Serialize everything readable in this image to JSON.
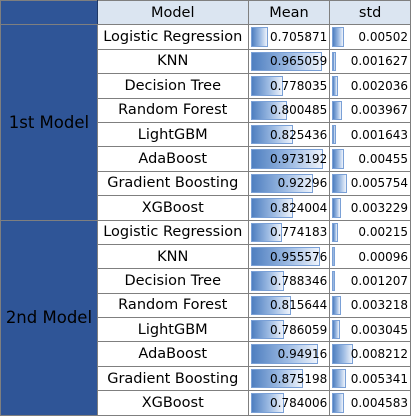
{
  "header": {
    "model": "Model",
    "mean": "Mean",
    "std": "std"
  },
  "groups": [
    {
      "label": "1st Model",
      "rows": [
        {
          "model": "Logistic Regression",
          "mean": "0.705871",
          "std": "0.00502",
          "mean_fill": 0.22,
          "std_fill": 0.16
        },
        {
          "model": "KNN",
          "mean": "0.965059",
          "std": "0.001627",
          "mean_fill": 0.93,
          "std_fill": 0.05
        },
        {
          "model": "Decision Tree",
          "mean": "0.778035",
          "std": "0.002036",
          "mean_fill": 0.42,
          "std_fill": 0.07
        },
        {
          "model": "Random Forest",
          "mean": "0.800485",
          "std": "0.003967",
          "mean_fill": 0.48,
          "std_fill": 0.13
        },
        {
          "model": "LightGBM",
          "mean": "0.825436",
          "std": "0.001643",
          "mean_fill": 0.55,
          "std_fill": 0.05
        },
        {
          "model": "AdaBoost",
          "mean": "0.973192",
          "std": "0.00455",
          "mean_fill": 0.95,
          "std_fill": 0.15
        },
        {
          "model": "Gradient Boosting",
          "mean": "0.92296",
          "std": "0.005754",
          "mean_fill": 0.81,
          "std_fill": 0.19
        },
        {
          "model": "XGBoost",
          "mean": "0.824004",
          "std": "0.003229",
          "mean_fill": 0.55,
          "std_fill": 0.11
        }
      ]
    },
    {
      "label": "2nd Model",
      "rows": [
        {
          "model": "Logistic Regression",
          "mean": "0.774183",
          "std": "0.00215",
          "mean_fill": 0.41,
          "std_fill": 0.07
        },
        {
          "model": "KNN",
          "mean": "0.955576",
          "std": "0.00096",
          "mean_fill": 0.9,
          "std_fill": 0.03
        },
        {
          "model": "Decision Tree",
          "mean": "0.788346",
          "std": "0.001207",
          "mean_fill": 0.44,
          "std_fill": 0.04
        },
        {
          "model": "Random Forest",
          "mean": "0.815644",
          "std": "0.003218",
          "mean_fill": 0.52,
          "std_fill": 0.11
        },
        {
          "model": "LightGBM",
          "mean": "0.786059",
          "std": "0.003045",
          "mean_fill": 0.44,
          "std_fill": 0.1
        },
        {
          "model": "AdaBoost",
          "mean": "0.94916",
          "std": "0.008212",
          "mean_fill": 0.88,
          "std_fill": 0.27
        },
        {
          "model": "Gradient Boosting",
          "mean": "0.875198",
          "std": "0.005341",
          "mean_fill": 0.68,
          "std_fill": 0.18
        },
        {
          "model": "XGBoost",
          "mean": "0.784006",
          "std": "0.004583",
          "mean_fill": 0.43,
          "std_fill": 0.15
        }
      ]
    }
  ],
  "colors": {
    "group_fill": "#2f5597",
    "header_fill": "#dbe5f1",
    "data_bar": "#4f7fc0"
  }
}
